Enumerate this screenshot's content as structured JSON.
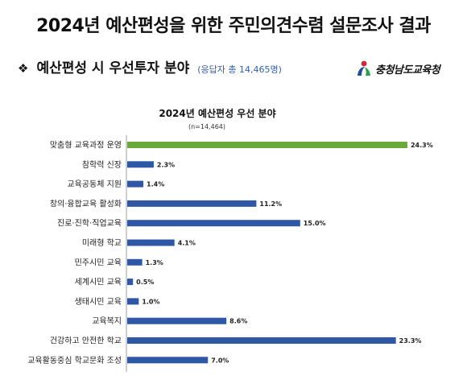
{
  "header": {
    "title": "2024년 예산편성을 위한 주민의견수렴 설문조사 결과",
    "subtitle": "예산편성 시 우선투자 분야",
    "respondents": "(응답자 총 14,465명)",
    "bullet_icon": "diamond-bullet-icon"
  },
  "logo": {
    "text": "충청남도교육청",
    "icon": "education-office-logo-icon",
    "colors": [
      "#d7262d",
      "#1f4e9c",
      "#2aa14a"
    ]
  },
  "chart_data": {
    "type": "bar",
    "orientation": "horizontal",
    "title": "2024년 예산편성 우선 분야",
    "subtitle": "(n=14,464)",
    "categories": [
      "맞춤형 교육과정 운영",
      "참학력 신장",
      "교육공동체 지원",
      "창의·융합교육 활성화",
      "진로·진학·직업교육",
      "미래형 학교",
      "민주시민 교육",
      "세계시민 교육",
      "생태시민 교육",
      "교육복지",
      "건강하고 안전한 학교",
      "교육활동중심 학교문화 조성"
    ],
    "values": [
      24.3,
      2.3,
      1.4,
      11.2,
      15.0,
      4.1,
      1.3,
      0.5,
      1.0,
      8.6,
      23.3,
      7.0
    ],
    "value_labels": [
      "24.3%",
      "2.3%",
      "1.4%",
      "11.2%",
      "15.0%",
      "4.1%",
      "1.3%",
      "0.5%",
      "1.0%",
      "8.6%",
      "23.3%",
      "7.0%"
    ],
    "unit": "%",
    "xlim": [
      0,
      25
    ],
    "grid": false,
    "colors": {
      "highlight": "#6aaa3a",
      "default": "#2e58a6"
    },
    "highlight_index": 0
  }
}
